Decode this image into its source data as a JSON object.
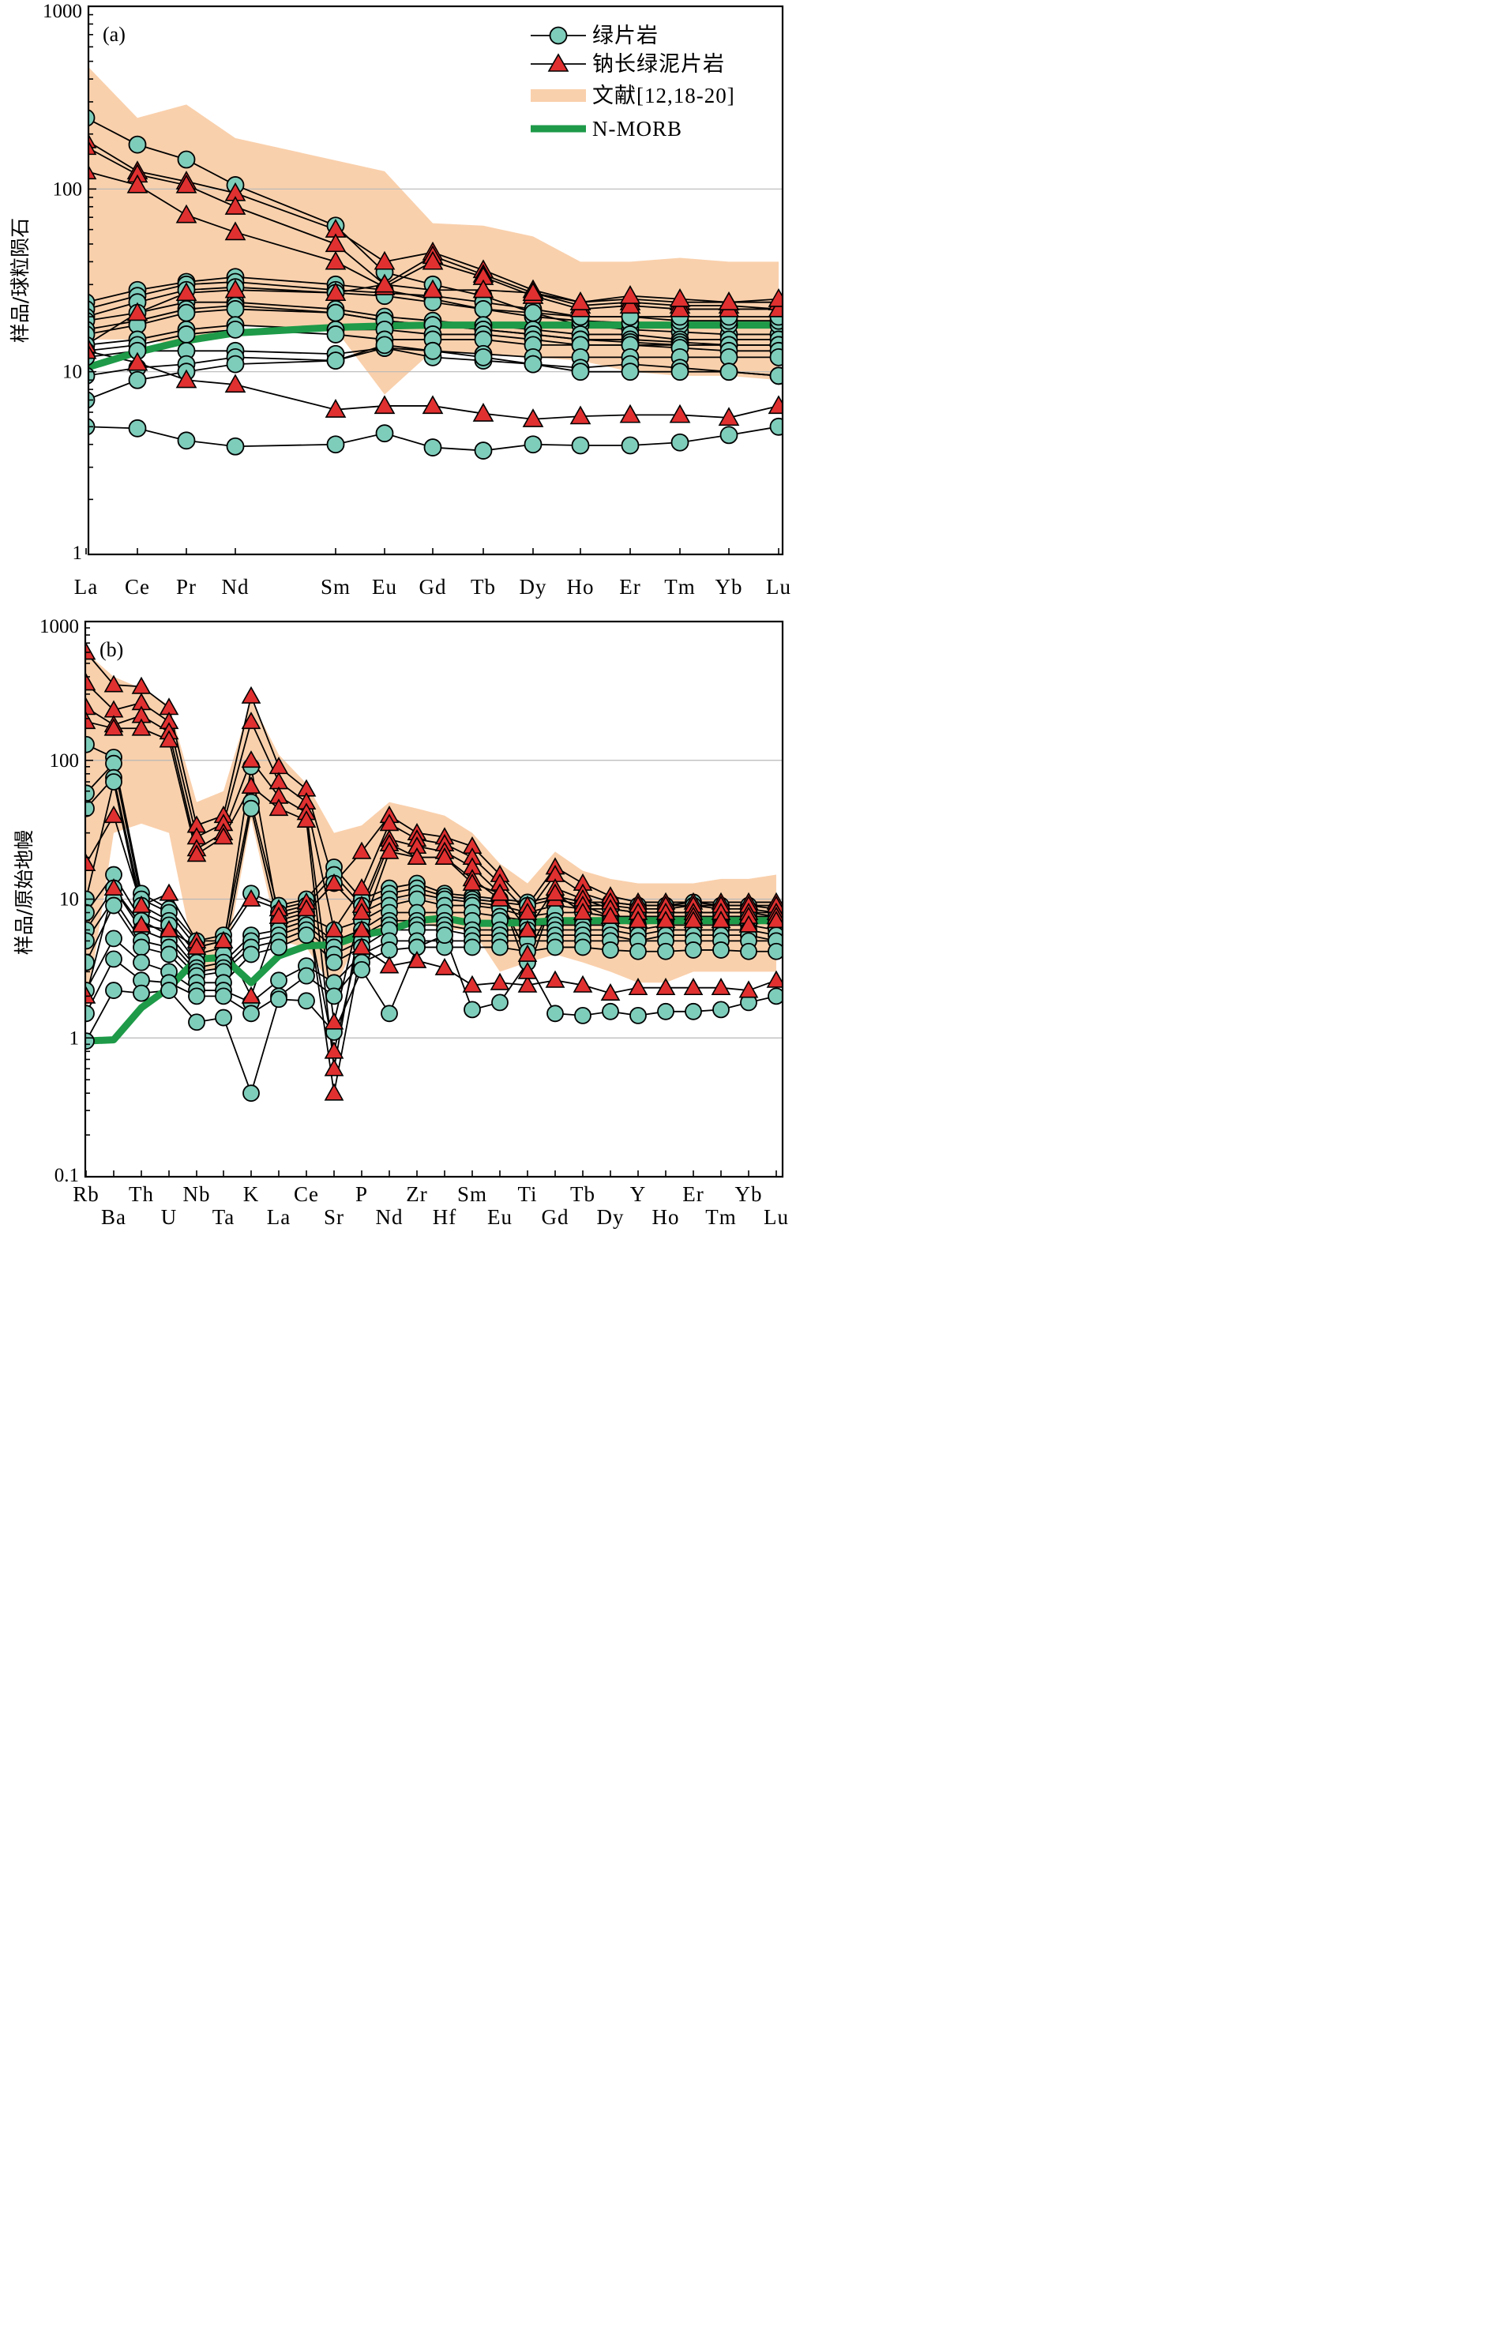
{
  "chart_data": [
    {
      "type": "line",
      "panel_label": "(a)",
      "ylabel": "样品/球粒陨石",
      "yscale": "log",
      "ylim": [
        1,
        1000
      ],
      "y_ticks": [
        "1",
        "10",
        "100",
        "1000"
      ],
      "categories": [
        "La",
        "Ce",
        "Pr",
        "Nd",
        "Sm",
        "Eu",
        "Gd",
        "Tb",
        "Dy",
        "Ho",
        "Er",
        "Tm",
        "Yb",
        "Lu"
      ],
      "legend": [
        {
          "label": "绿片岩",
          "kind": "circle"
        },
        {
          "label": "钠长绿泥片岩",
          "kind": "triangle"
        },
        {
          "label": "文献[12,18-20]",
          "kind": "band"
        },
        {
          "label": "N-MORB",
          "kind": "thick-line"
        }
      ],
      "colors": {
        "circle": "#7ecdbb",
        "triangle": "#e03030",
        "band": "#f9d0ac",
        "nmorb": "#1e9a48",
        "gridline": "#bbbbbb"
      },
      "reference_band": {
        "upper": [
          480,
          245,
          290,
          190,
          125,
          65,
          63,
          55,
          40,
          40,
          42,
          40,
          40
        ],
        "lower": [
          15,
          15,
          14,
          18,
          17,
          7.5,
          13,
          12,
          11.5,
          10,
          9.5,
          9.5,
          9
        ],
        "x_index_upper": [
          0,
          1,
          2,
          3,
          5,
          6,
          7,
          8,
          9,
          10,
          11,
          12,
          13
        ],
        "x_index_lower": [
          0,
          1,
          2,
          3,
          4,
          5,
          6,
          8,
          9,
          10,
          11,
          12,
          13
        ]
      },
      "n_morb": [
        10.5,
        12.8,
        14.8,
        16.3,
        17.5,
        17.8,
        18,
        18,
        18,
        18,
        18,
        18,
        18,
        18
      ],
      "greenschist_series": [
        [
          245,
          175,
          145,
          105,
          63,
          35,
          30,
          26,
          21,
          18,
          17,
          16.5,
          16,
          16
        ],
        [
          24,
          28,
          31,
          33,
          30,
          28,
          25,
          22,
          20,
          19,
          18.5,
          18,
          18,
          18
        ],
        [
          22,
          26,
          30,
          31,
          28,
          27,
          26,
          24,
          22,
          20,
          20,
          19,
          19,
          19
        ],
        [
          20,
          24,
          28,
          29,
          27,
          26,
          24,
          22,
          21,
          20,
          20,
          20,
          20,
          20
        ],
        [
          19,
          21,
          24,
          24,
          22,
          20,
          19,
          18,
          17,
          16,
          16,
          15,
          15,
          15
        ],
        [
          17,
          19,
          22,
          23,
          21,
          19,
          18,
          17,
          16,
          15,
          15,
          14.5,
          14,
          14
        ],
        [
          16,
          18,
          21,
          22,
          21,
          19,
          18,
          17,
          16,
          15,
          14.5,
          14,
          14,
          14
        ],
        [
          14,
          15,
          17,
          18,
          17,
          17,
          16,
          16,
          15,
          14,
          14,
          14,
          14,
          14
        ],
        [
          13,
          14,
          16,
          17,
          16,
          15,
          15,
          15,
          14,
          14,
          14,
          13.5,
          13,
          13
        ],
        [
          12,
          13,
          13,
          13,
          12.5,
          13.5,
          13,
          12.5,
          12,
          12,
          12,
          12,
          12,
          12
        ],
        [
          9.5,
          10.5,
          11,
          12,
          11.5,
          13.5,
          12,
          11.5,
          11,
          10.5,
          11,
          10.5,
          10,
          9.5
        ],
        [
          7,
          9,
          10,
          11,
          11.5,
          14,
          13,
          12,
          11,
          10,
          10,
          10,
          10,
          9.5
        ],
        [
          5,
          4.9,
          4.2,
          3.9,
          4,
          4.6,
          3.85,
          3.7,
          4,
          3.95,
          3.95,
          4.1,
          4.5,
          5
        ]
      ],
      "albite_chlorite_schist_series": [
        [
          185,
          125,
          110,
          95,
          60,
          40,
          45,
          36,
          28,
          24,
          25,
          24,
          24,
          24
        ],
        [
          170,
          120,
          105,
          80,
          50,
          30,
          43,
          34,
          27,
          23,
          24,
          23,
          23,
          22
        ],
        [
          125,
          105,
          72,
          58,
          40,
          29,
          40,
          33,
          26,
          22,
          23,
          22,
          22,
          22
        ],
        [
          14,
          21,
          27,
          28,
          27,
          30,
          28,
          28,
          27,
          24,
          26,
          25,
          24,
          25
        ],
        [
          13,
          11.2,
          9,
          8.5,
          6.2,
          6.5,
          6.5,
          5.9,
          5.5,
          5.7,
          5.8,
          5.8,
          5.6,
          6.5
        ]
      ]
    },
    {
      "type": "line",
      "panel_label": "(b)",
      "ylabel": "样品/原始地幔",
      "yscale": "log",
      "ylim": [
        0.1,
        1000
      ],
      "y_ticks": [
        "0.1",
        "1",
        "10",
        "100",
        "1000"
      ],
      "categories": [
        "Rb",
        "Ba",
        "Th",
        "U",
        "Nb",
        "Ta",
        "K",
        "La",
        "Ce",
        "Sr",
        "P",
        "Nd",
        "Zr",
        "Hf",
        "Sm",
        "Eu",
        "Ti",
        "Gd",
        "Tb",
        "Dy",
        "Y",
        "Ho",
        "Er",
        "Tm",
        "Yb",
        "Lu"
      ],
      "reference_band": {
        "upper": [
          600,
          400,
          330,
          250,
          50,
          60,
          270,
          110,
          68,
          30,
          34,
          50,
          45,
          40,
          30,
          18,
          13,
          22,
          16,
          14,
          13,
          13,
          13,
          14,
          14,
          15
        ],
        "lower": [
          1.5,
          30,
          35,
          30,
          3.2,
          3,
          38,
          5,
          4.5,
          2.2,
          6,
          6,
          7,
          6,
          6,
          3,
          3.5,
          4,
          3.5,
          3,
          2.5,
          2.5,
          3,
          3,
          3,
          3
        ]
      },
      "n_morb": [
        0.95,
        0.97,
        1.65,
        2.3,
        3.7,
        3.8,
        2.5,
        3.9,
        4.6,
        4.7,
        5.5,
        6,
        7,
        7.3,
        6.7,
        6.7,
        6.8,
        7,
        7,
        7,
        7,
        7,
        7,
        7,
        7,
        7
      ],
      "greenschist_series": [
        [
          130,
          105,
          11,
          8.5,
          5,
          5.5,
          11,
          9,
          10,
          17,
          10,
          12,
          13,
          11,
          10.5,
          10,
          9.5,
          10.5,
          9.5,
          9.5,
          9,
          9,
          9.5,
          9,
          9,
          8.5
        ],
        [
          58,
          95,
          10,
          8,
          4.5,
          5,
          50,
          8,
          9,
          15,
          9,
          11,
          12,
          10.5,
          10,
          9.5,
          9,
          10,
          9,
          9,
          8.5,
          8.5,
          9,
          8.5,
          8.5,
          8
        ],
        [
          45,
          75,
          9,
          7,
          4,
          4.5,
          90,
          7,
          8,
          13,
          8,
          10,
          11,
          10,
          9.5,
          9,
          8,
          9,
          8.5,
          8.5,
          8,
          8,
          8,
          8,
          8,
          7.5
        ],
        [
          10,
          70,
          8,
          6.5,
          3.5,
          4,
          45,
          6.5,
          7.5,
          6,
          7,
          9,
          10,
          9,
          9,
          8.5,
          7.5,
          8,
          8,
          7.5,
          7.5,
          7.5,
          7.5,
          7.5,
          7.5,
          7
        ],
        [
          8,
          15,
          7,
          5.5,
          3.2,
          3.5,
          5.5,
          6,
          7,
          5,
          6,
          8,
          8,
          8,
          8,
          7.5,
          7,
          7,
          7,
          7,
          6.5,
          7,
          7,
          7,
          7,
          6.5
        ],
        [
          6,
          12,
          6,
          5,
          3,
          3.2,
          5,
          5.5,
          6.5,
          4.5,
          5.5,
          7,
          7,
          7,
          7,
          7,
          6.5,
          6.5,
          6.5,
          6.5,
          6,
          6.5,
          6.5,
          6.5,
          6.5,
          6
        ],
        [
          5,
          10,
          5,
          4.5,
          2.8,
          3,
          4.5,
          5,
          6,
          4,
          5,
          6.5,
          6.5,
          6.5,
          6,
          6,
          6,
          6,
          6,
          6,
          5.5,
          6,
          6,
          6,
          6,
          5.5
        ],
        [
          3.5,
          9,
          4.5,
          4,
          2.5,
          2.5,
          4,
          4.5,
          5.5,
          3.5,
          4.5,
          6,
          6,
          6,
          5.5,
          5.5,
          5.5,
          5.5,
          5.5,
          5.5,
          5,
          5.5,
          5.5,
          5.5,
          5.5,
          5
        ],
        [
          2.2,
          5.2,
          3.5,
          3,
          2.2,
          2.2,
          1.8,
          2.6,
          3.3,
          2.5,
          4,
          5,
          5,
          5,
          5,
          5,
          5,
          5,
          5,
          5,
          5,
          5,
          5,
          5,
          5,
          5
        ],
        [
          1.5,
          3.7,
          2.6,
          2.5,
          2,
          2,
          1.5,
          2,
          2.8,
          2,
          3.5,
          4.3,
          4.5,
          4.5,
          4.5,
          4.5,
          4.2,
          4.5,
          4.5,
          4.3,
          4.2,
          4.2,
          4.3,
          4.3,
          4.2,
          4.2
        ],
        [
          0.95,
          2.2,
          2.1,
          2.2,
          1.3,
          1.4,
          0.4,
          1.9,
          1.85,
          1.1,
          3.1,
          1.5,
          4.5,
          5.5,
          1.6,
          1.8,
          3.5,
          1.5,
          1.45,
          1.55,
          1.45,
          1.55,
          1.55,
          1.6,
          1.8,
          2
        ]
      ],
      "albite_chlorite_schist_series": [
        [
          600,
          350,
          340,
          240,
          34,
          40,
          290,
          90,
          62,
          13,
          22,
          40,
          30,
          28,
          24,
          15,
          9,
          17,
          13,
          10.5,
          9.5,
          9.5,
          9.5,
          9.5,
          9.5,
          9.5
        ],
        [
          360,
          230,
          260,
          190,
          28,
          35,
          190,
          70,
          50,
          6,
          12,
          35,
          27,
          25,
          20,
          13,
          8,
          15,
          11,
          9.5,
          9,
          9,
          9,
          9,
          9,
          9
        ],
        [
          240,
          180,
          210,
          160,
          23,
          30,
          100,
          55,
          42,
          1.3,
          9,
          27,
          24,
          22,
          17,
          11,
          6,
          12,
          10,
          8.5,
          8,
          8,
          8,
          8,
          8,
          8
        ],
        [
          190,
          170,
          170,
          140,
          21,
          28,
          65,
          45,
          37,
          0.6,
          8,
          25,
          20,
          20,
          14,
          10,
          4,
          10,
          9,
          7.5,
          7,
          7,
          7.5,
          7,
          7.5,
          7.5
        ],
        [
          18,
          40,
          9,
          11,
          5,
          5,
          10,
          8.5,
          9.5,
          0.4,
          4.5,
          3.3,
          3.6,
          3.2,
          2.4,
          2.5,
          2.4,
          2.6,
          2.4,
          2.1,
          2.3,
          2.3,
          2.3,
          2.3,
          2.2,
          2.6
        ],
        [
          2,
          12,
          6.5,
          6,
          4.5,
          5,
          2,
          7.5,
          8.5,
          0.8,
          6,
          22,
          20,
          20,
          13,
          11,
          3,
          11,
          8,
          7.5,
          7,
          7,
          7,
          7,
          6.5,
          7
        ]
      ]
    }
  ]
}
